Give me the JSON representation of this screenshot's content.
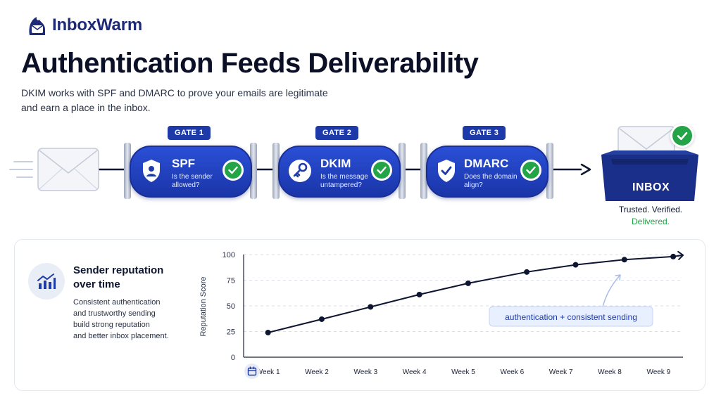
{
  "brand": {
    "name": "InboxWarm"
  },
  "header": {
    "title": "Authentication Feeds Deliverability",
    "subtitle_line1": "DKIM works with SPF and DMARC to prove your emails are legitimate",
    "subtitle_line2": "and earn a place in the inbox."
  },
  "gates": [
    {
      "tag": "GATE 1",
      "name": "SPF",
      "q1": "Is the sender",
      "q2": "allowed?",
      "icon": "shield-person-icon"
    },
    {
      "tag": "GATE 2",
      "name": "DKIM",
      "q1": "Is the message",
      "q2": "untampered?",
      "icon": "key-icon"
    },
    {
      "tag": "GATE 3",
      "name": "DMARC",
      "q1": "Does the domain",
      "q2": "align?",
      "icon": "shield-check-icon"
    }
  ],
  "inbox": {
    "label": "INBOX",
    "status_line1": "Trusted. Verified.",
    "status_line2": "Delivered."
  },
  "reputation": {
    "title_line1": "Sender reputation",
    "title_line2": "over time",
    "desc": [
      "Consistent authentication",
      "and trustworthy sending",
      "build strong reputation",
      "and better inbox placement."
    ]
  },
  "colors": {
    "brand": "#1d3aa8",
    "success": "#22a447",
    "line": "#0e1530",
    "annotation_bg": "#e8efff"
  },
  "chart_data": {
    "type": "line",
    "categories": [
      "Week 1",
      "Week 2",
      "Week 3",
      "Week 4",
      "Week 5",
      "Week 6",
      "Week 7",
      "Week 8",
      "Week 9"
    ],
    "x": [
      0.5,
      1.6,
      2.6,
      3.6,
      4.6,
      5.8,
      6.8,
      7.8,
      8.8
    ],
    "values": [
      24,
      37,
      49,
      61,
      72,
      83,
      90,
      95,
      98
    ],
    "xlabel": "",
    "ylabel": "Reputation Score",
    "ylim": [
      0,
      100
    ],
    "yticks": [
      "0",
      "25",
      "50",
      "75",
      "100"
    ],
    "grid": true,
    "annotation": "authentication + consistent sending"
  }
}
